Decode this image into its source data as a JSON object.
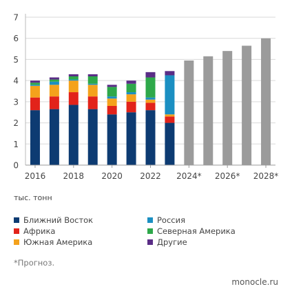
{
  "chart_data": {
    "type": "bar",
    "stacked": true,
    "categories": [
      "2016",
      "2017",
      "2018",
      "2019",
      "2020",
      "2021",
      "2022",
      "2023",
      "2024*",
      "2025*",
      "2026*",
      "2027*",
      "2028*"
    ],
    "x_tick_labels": [
      "2016",
      "2018",
      "2020",
      "2022",
      "2024*",
      "2026*",
      "2028*"
    ],
    "y_ticks": [
      0,
      1,
      2,
      3,
      4,
      5,
      6,
      7
    ],
    "ylim": [
      0,
      7
    ],
    "unit_label": "тыс. тонн",
    "grid": true,
    "series": [
      {
        "name": "Ближний Восток",
        "color": "#0d3b72",
        "values": [
          2.6,
          2.65,
          2.85,
          2.65,
          2.4,
          2.5,
          2.6,
          2.0,
          null,
          null,
          null,
          null,
          null
        ]
      },
      {
        "name": "Африка",
        "color": "#e2231a",
        "values": [
          0.6,
          0.6,
          0.6,
          0.6,
          0.4,
          0.5,
          0.35,
          0.3,
          null,
          null,
          null,
          null,
          null
        ]
      },
      {
        "name": "Южная Америка",
        "color": "#f4a21c",
        "values": [
          0.55,
          0.55,
          0.55,
          0.55,
          0.35,
          0.35,
          0.15,
          0.1,
          null,
          null,
          null,
          null,
          null
        ]
      },
      {
        "name": "Россия",
        "color": "#1b8fc2",
        "values": [
          0.05,
          0.15,
          0.05,
          0.05,
          0.1,
          0.1,
          0.1,
          1.85,
          null,
          null,
          null,
          null,
          null
        ]
      },
      {
        "name": "Северная Америка",
        "color": "#2ea84a",
        "values": [
          0.1,
          0.1,
          0.15,
          0.35,
          0.45,
          0.4,
          0.95,
          0.0,
          null,
          null,
          null,
          null,
          null
        ]
      },
      {
        "name": "Другие",
        "color": "#5a2d86",
        "values": [
          0.1,
          0.1,
          0.1,
          0.1,
          0.1,
          0.15,
          0.25,
          0.2,
          null,
          null,
          null,
          null,
          null
        ]
      },
      {
        "name": "",
        "color": "#9b9b9b",
        "forecast": true,
        "values": [
          null,
          null,
          null,
          null,
          null,
          null,
          null,
          null,
          4.95,
          5.15,
          5.4,
          5.65,
          6.0
        ]
      }
    ]
  },
  "legend": [
    {
      "label": "Ближний Восток",
      "color": "#0d3b72"
    },
    {
      "label": "Россия",
      "color": "#1b8fc2"
    },
    {
      "label": "Африка",
      "color": "#e2231a"
    },
    {
      "label": "Северная Америка",
      "color": "#2ea84a"
    },
    {
      "label": "Южная Америка",
      "color": "#f4a21c"
    },
    {
      "label": "Другие",
      "color": "#5a2d86"
    }
  ],
  "footnote": "*Прогноз.",
  "source": "monocle.ru"
}
